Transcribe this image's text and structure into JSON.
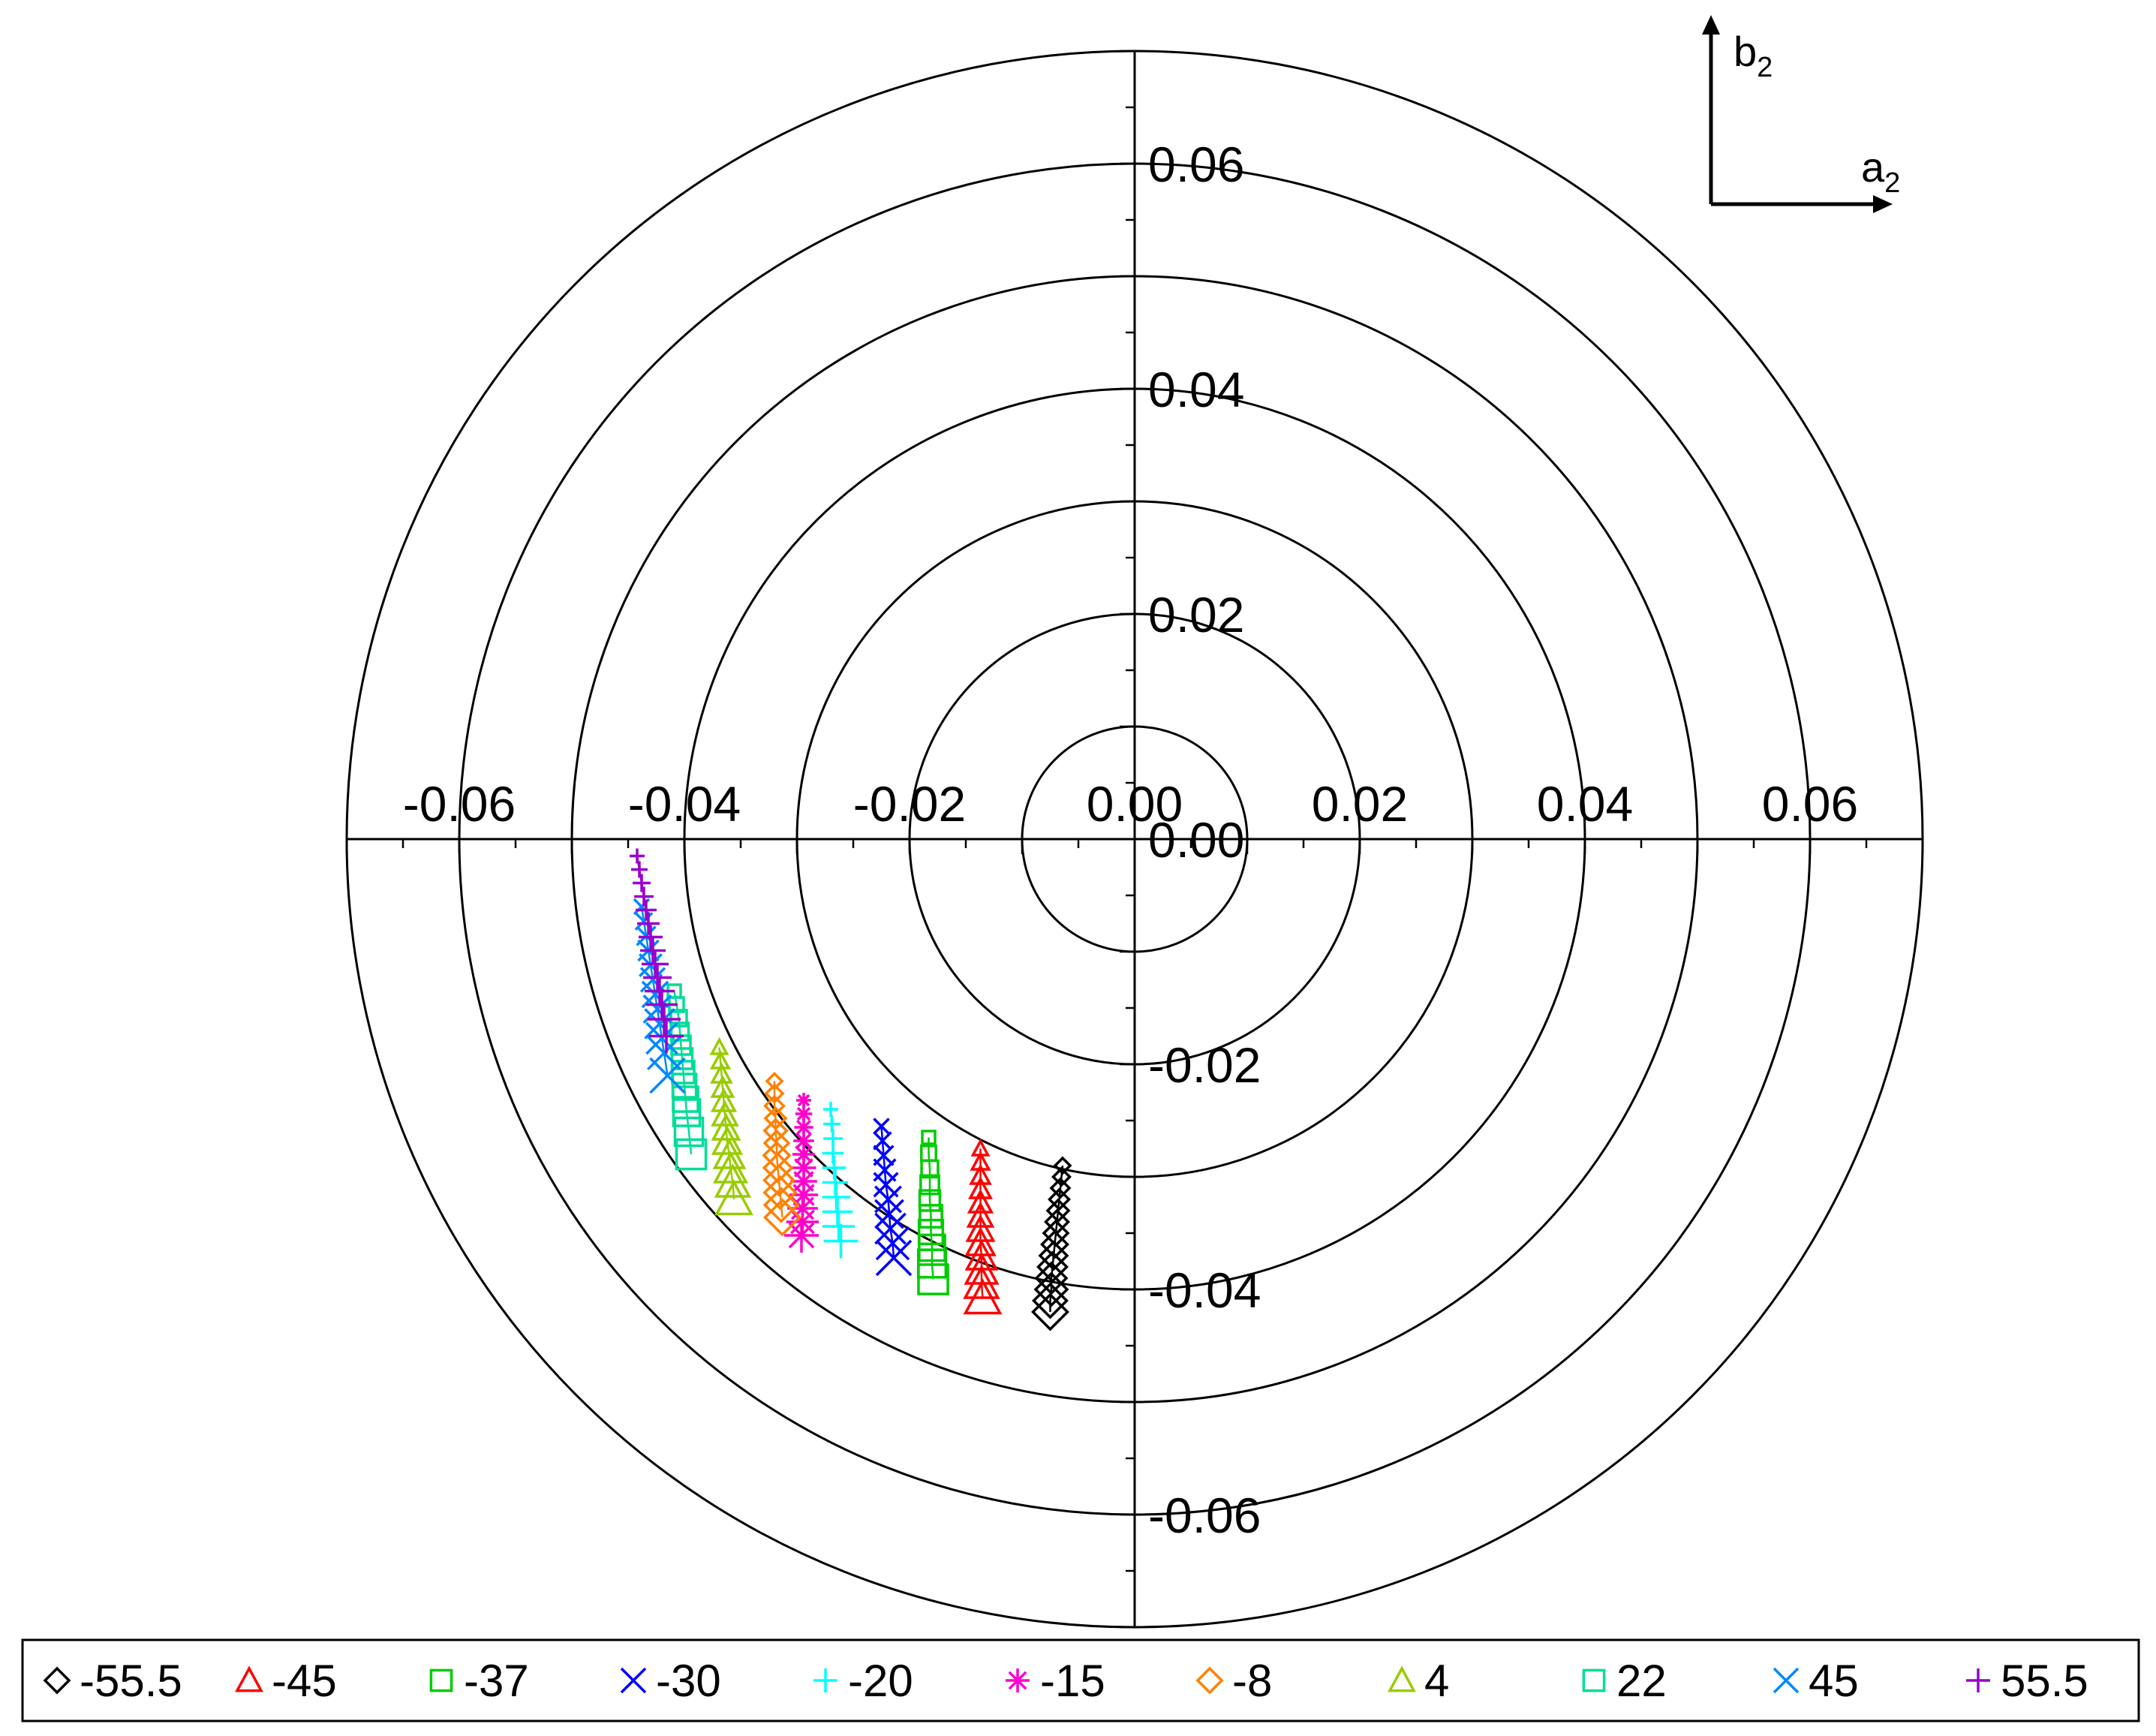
{
  "chart_data": {
    "type": "scatter",
    "title": "",
    "coordinate": "polar-grid",
    "xlim": [
      -0.07,
      0.07
    ],
    "ylim": [
      -0.07,
      0.07
    ],
    "ring_radii": [
      0.01,
      0.02,
      0.03,
      0.04,
      0.05,
      0.06,
      0.07
    ],
    "x_ticks": [
      "-0.06",
      "-0.04",
      "-0.02",
      "0.00",
      "0.02",
      "0.04",
      "0.06"
    ],
    "y_ticks": [
      "0.06",
      "0.04",
      "0.02",
      "0.00",
      "-0.02",
      "-0.04",
      "-0.06"
    ],
    "inset_axes": {
      "x": "a",
      "x_sub": "2",
      "y": "b",
      "y_sub": "2"
    },
    "legend_position": "bottom",
    "series": [
      {
        "name": "-55.5",
        "marker": "diamond",
        "color": "#000000",
        "points": [
          [
            -0.0064,
            -0.029
          ],
          [
            -0.0065,
            -0.03
          ],
          [
            -0.0066,
            -0.031
          ],
          [
            -0.0067,
            -0.032
          ],
          [
            -0.0068,
            -0.033
          ],
          [
            -0.0069,
            -0.034
          ],
          [
            -0.007,
            -0.035
          ],
          [
            -0.0071,
            -0.036
          ],
          [
            -0.0072,
            -0.037
          ],
          [
            -0.0073,
            -0.038
          ],
          [
            -0.0074,
            -0.039
          ],
          [
            -0.0074,
            -0.04
          ],
          [
            -0.0075,
            -0.041
          ],
          [
            -0.0075,
            -0.042
          ]
        ]
      },
      {
        "name": "-45",
        "marker": "triangle",
        "color": "#ff0000",
        "points": [
          [
            -0.0137,
            -0.0275
          ],
          [
            -0.0137,
            -0.0287
          ],
          [
            -0.0137,
            -0.0299
          ],
          [
            -0.0137,
            -0.0311
          ],
          [
            -0.0137,
            -0.0323
          ],
          [
            -0.0137,
            -0.0335
          ],
          [
            -0.0137,
            -0.0347
          ],
          [
            -0.0137,
            -0.0359
          ],
          [
            -0.0136,
            -0.0371
          ],
          [
            -0.0136,
            -0.0383
          ],
          [
            -0.0136,
            -0.0395
          ],
          [
            -0.0135,
            -0.0408
          ]
        ]
      },
      {
        "name": "-37",
        "marker": "square",
        "color": "#00cc00",
        "points": [
          [
            -0.0183,
            -0.0265
          ],
          [
            -0.0183,
            -0.0279
          ],
          [
            -0.0182,
            -0.0293
          ],
          [
            -0.0182,
            -0.0307
          ],
          [
            -0.0182,
            -0.0321
          ],
          [
            -0.0181,
            -0.0335
          ],
          [
            -0.0181,
            -0.0349
          ],
          [
            -0.018,
            -0.0363
          ],
          [
            -0.018,
            -0.0377
          ],
          [
            -0.0179,
            -0.0391
          ]
        ]
      },
      {
        "name": "-30",
        "marker": "x",
        "color": "#0000ff",
        "points": [
          [
            -0.0225,
            -0.0255
          ],
          [
            -0.0224,
            -0.0268
          ],
          [
            -0.0223,
            -0.0281
          ],
          [
            -0.0222,
            -0.0294
          ],
          [
            -0.0221,
            -0.0307
          ],
          [
            -0.0219,
            -0.032
          ],
          [
            -0.0218,
            -0.0333
          ],
          [
            -0.0217,
            -0.0346
          ],
          [
            -0.0215,
            -0.0359
          ],
          [
            -0.0214,
            -0.0372
          ]
        ]
      },
      {
        "name": "-20",
        "marker": "plus",
        "color": "#00ffff",
        "points": [
          [
            -0.027,
            -0.024
          ],
          [
            -0.0269,
            -0.0253
          ],
          [
            -0.0268,
            -0.0266
          ],
          [
            -0.0268,
            -0.0279
          ],
          [
            -0.0267,
            -0.0292
          ],
          [
            -0.0266,
            -0.0305
          ],
          [
            -0.0265,
            -0.0318
          ],
          [
            -0.0264,
            -0.0331
          ],
          [
            -0.0263,
            -0.0344
          ],
          [
            -0.0261,
            -0.0357
          ]
        ]
      },
      {
        "name": "-15",
        "marker": "asterisk",
        "color": "#ff00cc",
        "points": [
          [
            -0.0294,
            -0.0232
          ],
          [
            -0.0294,
            -0.0244
          ],
          [
            -0.0294,
            -0.0256
          ],
          [
            -0.0294,
            -0.0268
          ],
          [
            -0.0294,
            -0.028
          ],
          [
            -0.0294,
            -0.0292
          ],
          [
            -0.0294,
            -0.0304
          ],
          [
            -0.0294,
            -0.0316
          ],
          [
            -0.0295,
            -0.0328
          ],
          [
            -0.0295,
            -0.034
          ],
          [
            -0.0296,
            -0.0352
          ]
        ]
      },
      {
        "name": "-8",
        "marker": "diamond",
        "color": "#ff8000",
        "points": [
          [
            -0.032,
            -0.0215
          ],
          [
            -0.032,
            -0.0226
          ],
          [
            -0.032,
            -0.0237
          ],
          [
            -0.0319,
            -0.0248
          ],
          [
            -0.0319,
            -0.0259
          ],
          [
            -0.0318,
            -0.027
          ],
          [
            -0.0318,
            -0.0281
          ],
          [
            -0.0317,
            -0.0292
          ],
          [
            -0.0316,
            -0.0303
          ],
          [
            -0.0315,
            -0.0314
          ],
          [
            -0.0314,
            -0.0325
          ],
          [
            -0.0313,
            -0.0336
          ]
        ]
      },
      {
        "name": "4",
        "marker": "triangle",
        "color": "#99cc00",
        "points": [
          [
            -0.0369,
            -0.0185
          ],
          [
            -0.0368,
            -0.0197
          ],
          [
            -0.0367,
            -0.0209
          ],
          [
            -0.0366,
            -0.0221
          ],
          [
            -0.0365,
            -0.0233
          ],
          [
            -0.0364,
            -0.0245
          ],
          [
            -0.0363,
            -0.0257
          ],
          [
            -0.0362,
            -0.0269
          ],
          [
            -0.036,
            -0.0281
          ],
          [
            -0.0359,
            -0.0293
          ],
          [
            -0.0357,
            -0.0305
          ],
          [
            -0.0356,
            -0.032
          ]
        ]
      },
      {
        "name": "22",
        "marker": "square",
        "color": "#00dd99",
        "points": [
          [
            -0.0409,
            -0.0135
          ],
          [
            -0.0407,
            -0.0147
          ],
          [
            -0.0405,
            -0.0159
          ],
          [
            -0.0404,
            -0.0171
          ],
          [
            -0.0403,
            -0.0183
          ],
          [
            -0.0402,
            -0.0195
          ],
          [
            -0.0401,
            -0.0207
          ],
          [
            -0.04,
            -0.0219
          ],
          [
            -0.0399,
            -0.0231
          ],
          [
            -0.0398,
            -0.0243
          ],
          [
            -0.0396,
            -0.026
          ],
          [
            -0.0394,
            -0.028
          ]
        ]
      },
      {
        "name": "45",
        "marker": "x",
        "color": "#0088ff",
        "points": [
          [
            -0.0438,
            -0.006
          ],
          [
            -0.0436,
            -0.0073
          ],
          [
            -0.0434,
            -0.0086
          ],
          [
            -0.0432,
            -0.0099
          ],
          [
            -0.043,
            -0.0112
          ],
          [
            -0.0428,
            -0.0125
          ],
          [
            -0.0426,
            -0.0138
          ],
          [
            -0.0424,
            -0.0151
          ],
          [
            -0.0422,
            -0.0164
          ],
          [
            -0.042,
            -0.0177
          ],
          [
            -0.0418,
            -0.019
          ],
          [
            -0.0415,
            -0.021
          ]
        ]
      },
      {
        "name": "55.5",
        "marker": "plus",
        "color": "#9900cc",
        "points": [
          [
            -0.0442,
            -0.0015
          ],
          [
            -0.044,
            -0.0027
          ],
          [
            -0.0438,
            -0.0039
          ],
          [
            -0.0436,
            -0.0051
          ],
          [
            -0.0434,
            -0.0063
          ],
          [
            -0.0432,
            -0.0075
          ],
          [
            -0.043,
            -0.0087
          ],
          [
            -0.0428,
            -0.0099
          ],
          [
            -0.0426,
            -0.0111
          ],
          [
            -0.0424,
            -0.0123
          ],
          [
            -0.0422,
            -0.0135
          ],
          [
            -0.042,
            -0.0147
          ],
          [
            -0.0418,
            -0.016
          ],
          [
            -0.0416,
            -0.0175
          ]
        ]
      }
    ]
  }
}
